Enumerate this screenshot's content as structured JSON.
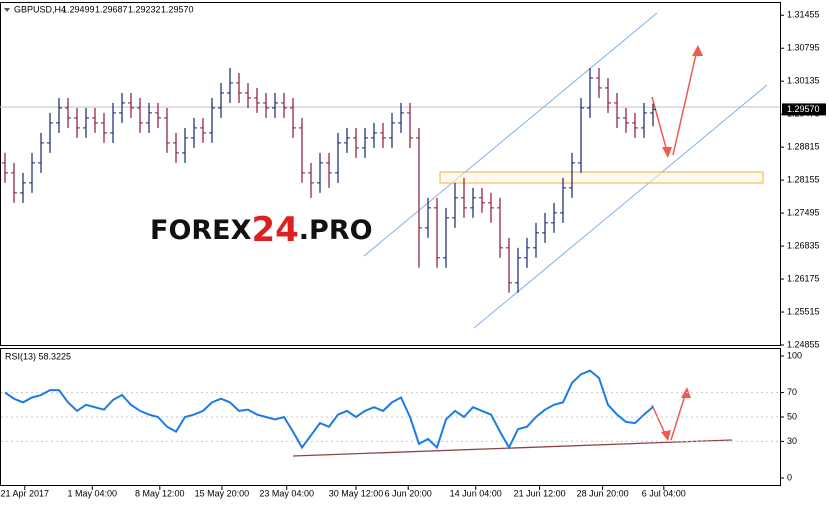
{
  "chart_data": [
    {
      "type": "ohlc",
      "symbol": "GBPUSD,H4",
      "quote": [
        "1.29499",
        "1.29687",
        "1.29232",
        "1.29570"
      ],
      "last_price_label": "1.29570",
      "watermark": [
        "FOREX",
        "24",
        ".PRO"
      ],
      "up_color": "#14246e",
      "down_color": "#8a1538",
      "open": [
        1.285,
        1.283,
        1.279,
        1.281,
        1.285,
        1.289,
        1.293,
        1.296,
        1.294,
        1.292,
        1.294,
        1.293,
        1.291,
        1.295,
        1.297,
        1.296,
        1.293,
        1.295,
        1.294,
        1.289,
        1.287,
        1.29,
        1.292,
        1.291,
        1.296,
        1.299,
        1.301,
        1.299,
        1.298,
        1.297,
        1.296,
        1.297,
        1.296,
        1.292,
        1.283,
        1.281,
        1.285,
        1.283,
        1.289,
        1.29,
        1.288,
        1.29,
        1.291,
        1.29,
        1.293,
        1.295,
        1.29,
        1.272,
        1.276,
        1.266,
        1.274,
        1.278,
        1.276,
        1.278,
        1.277,
        1.276,
        1.268,
        1.261,
        1.266,
        1.268,
        1.271,
        1.273,
        1.275,
        1.28,
        1.285,
        1.296,
        1.302,
        1.3,
        1.297,
        1.294,
        1.293,
        1.292,
        1.29499
      ],
      "high": [
        1.287,
        1.285,
        1.283,
        1.287,
        1.291,
        1.295,
        1.298,
        1.298,
        1.296,
        1.296,
        1.296,
        1.295,
        1.297,
        1.299,
        1.299,
        1.298,
        1.297,
        1.297,
        1.296,
        1.291,
        1.292,
        1.294,
        1.294,
        1.298,
        1.301,
        1.304,
        1.303,
        1.301,
        1.3,
        1.299,
        1.299,
        1.299,
        1.298,
        1.294,
        1.285,
        1.287,
        1.287,
        1.291,
        1.292,
        1.292,
        1.292,
        1.293,
        1.293,
        1.295,
        1.297,
        1.297,
        1.292,
        1.278,
        1.278,
        1.276,
        1.281,
        1.282,
        1.28,
        1.28,
        1.279,
        1.278,
        1.27,
        1.268,
        1.27,
        1.273,
        1.275,
        1.277,
        1.282,
        1.287,
        1.298,
        1.304,
        1.304,
        1.302,
        1.299,
        1.296,
        1.295,
        1.297,
        1.29687
      ],
      "low": [
        1.281,
        1.277,
        1.277,
        1.279,
        1.283,
        1.287,
        1.291,
        1.292,
        1.29,
        1.29,
        1.291,
        1.289,
        1.289,
        1.293,
        1.294,
        1.291,
        1.291,
        1.292,
        1.287,
        1.285,
        1.285,
        1.288,
        1.289,
        1.289,
        1.294,
        1.297,
        1.297,
        1.296,
        1.295,
        1.294,
        1.294,
        1.294,
        1.29,
        1.281,
        1.278,
        1.279,
        1.28,
        1.281,
        1.287,
        1.286,
        1.286,
        1.288,
        1.288,
        1.288,
        1.291,
        1.288,
        1.264,
        1.27,
        1.264,
        1.264,
        1.272,
        1.274,
        1.274,
        1.275,
        1.273,
        1.266,
        1.259,
        1.259,
        1.264,
        1.266,
        1.269,
        1.271,
        1.273,
        1.278,
        1.283,
        1.294,
        1.298,
        1.295,
        1.292,
        1.291,
        1.29,
        1.29,
        1.29232
      ],
      "close": [
        1.283,
        1.279,
        1.281,
        1.285,
        1.289,
        1.293,
        1.296,
        1.294,
        1.292,
        1.294,
        1.293,
        1.291,
        1.295,
        1.297,
        1.296,
        1.293,
        1.295,
        1.294,
        1.289,
        1.287,
        1.29,
        1.292,
        1.291,
        1.296,
        1.299,
        1.301,
        1.299,
        1.298,
        1.297,
        1.296,
        1.297,
        1.296,
        1.292,
        1.283,
        1.281,
        1.285,
        1.283,
        1.289,
        1.29,
        1.288,
        1.29,
        1.291,
        1.29,
        1.293,
        1.295,
        1.29,
        1.272,
        1.276,
        1.266,
        1.274,
        1.278,
        1.276,
        1.278,
        1.277,
        1.276,
        1.268,
        1.261,
        1.266,
        1.268,
        1.271,
        1.273,
        1.275,
        1.28,
        1.285,
        1.296,
        1.302,
        1.3,
        1.297,
        1.294,
        1.293,
        1.292,
        1.295,
        1.2957
      ],
      "xlim": [
        0,
        86
      ],
      "xticks": [
        {
          "value": 2.2,
          "label": "21 Apr 2017"
        },
        {
          "value": 9.7,
          "label": "1 May 04:00"
        },
        {
          "value": 17.2,
          "label": "8 May 12:00"
        },
        {
          "value": 24.1,
          "label": "15 May 20:00"
        },
        {
          "value": 31.3,
          "label": "23 May 04:00"
        },
        {
          "value": 39,
          "label": "30 May 12:00"
        },
        {
          "value": 44.8,
          "label": "6 Jun 20:00"
        },
        {
          "value": 52.3,
          "label": "14 Jun 04:00"
        },
        {
          "value": 59.4,
          "label": "21 Jun 12:00"
        },
        {
          "value": 66.4,
          "label": "28 Jun 20:00"
        },
        {
          "value": 73.2,
          "label": "6 Jul 04:00"
        }
      ],
      "ylim": [
        1.24855,
        1.3172
      ],
      "yticks": [
        1.31455,
        1.30795,
        1.30135,
        1.29475,
        1.28815,
        1.28155,
        1.27495,
        1.26835,
        1.26175,
        1.25515,
        1.24855
      ]
    },
    {
      "type": "line",
      "label": "RSI(13) 58.3225",
      "color": "#1e7be0",
      "values": [
        70,
        65,
        62,
        66,
        68,
        72,
        72,
        62,
        55,
        60,
        58,
        56,
        64,
        68,
        60,
        55,
        52,
        50,
        42,
        38,
        50,
        52,
        55,
        62,
        65,
        62,
        55,
        56,
        52,
        50,
        48,
        50,
        38,
        25,
        35,
        45,
        42,
        52,
        55,
        50,
        55,
        58,
        55,
        62,
        66,
        50,
        28,
        32,
        25,
        48,
        55,
        50,
        58,
        55,
        52,
        38,
        25,
        40,
        42,
        50,
        56,
        60,
        62,
        78,
        85,
        88,
        82,
        60,
        52,
        46,
        45,
        52,
        58.3225
      ],
      "ylim": [
        0,
        100
      ],
      "yticks": [
        100,
        70,
        50,
        30,
        0
      ]
    }
  ]
}
